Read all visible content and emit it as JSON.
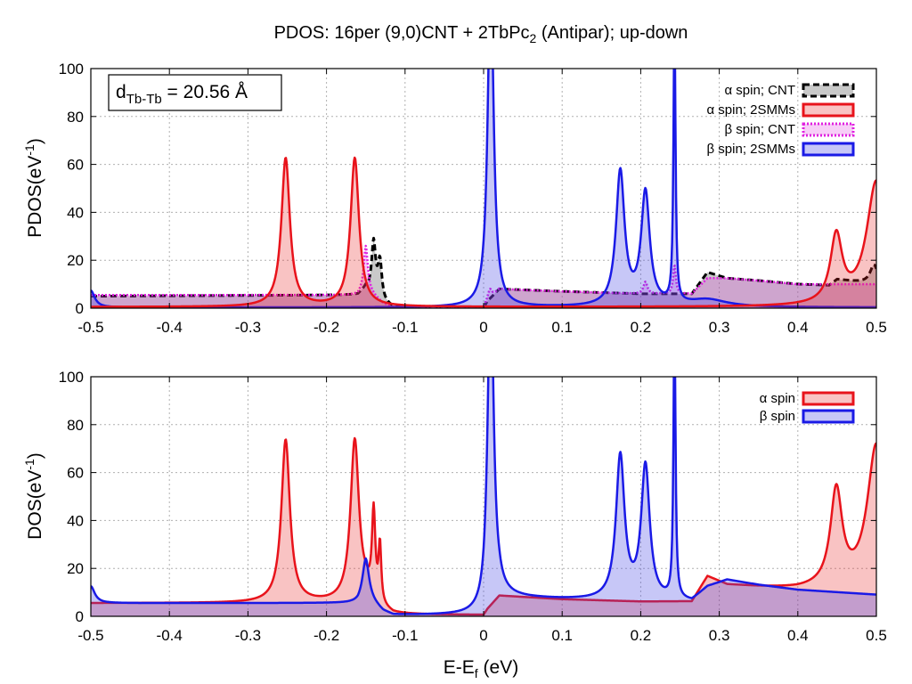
{
  "title": {
    "prefix": "PDOS: 16per (9,0)CNT + 2TbPc",
    "sub": "2",
    "suffix": " (Antipar); up-down"
  },
  "annotation": {
    "d_main": "d",
    "d_sub": "Tb-Tb",
    "d_value": " = 20.56 Å"
  },
  "colors": {
    "alpha": "#e8131b",
    "alpha_fill": "rgba(232,40,40,0.28)",
    "beta": "#1a1ae6",
    "beta_fill": "rgba(70,70,230,0.30)",
    "cnt_alpha": "#000000",
    "cnt_alpha_fill": "rgba(120,120,120,0.40)",
    "cnt_beta": "#e020e0",
    "cnt_beta_fill": "rgba(225,60,225,0.25)"
  },
  "chart_data": [
    {
      "type": "area",
      "panel": "top",
      "ylabel_main": "PDOS(eV",
      "ylabel_sup": "-1",
      "ylabel_end": ")",
      "xlim": [
        -0.5,
        0.5
      ],
      "ylim": [
        0,
        100
      ],
      "xticks": [
        -0.5,
        -0.4,
        -0.3,
        -0.2,
        -0.1,
        0,
        0.1,
        0.2,
        0.3,
        0.4,
        0.5
      ],
      "yticks": [
        0,
        20,
        40,
        60,
        80,
        100
      ],
      "grid": true,
      "legend_position": "top-right",
      "series": [
        {
          "name": "α spin; CNT",
          "style": "dashed",
          "baseline": [
            [
              -0.5,
              5
            ],
            [
              -0.16,
              5.5
            ],
            [
              -0.15,
              8
            ],
            [
              -0.128,
              2
            ],
            [
              -0.115,
              0.3
            ],
            [
              0.0,
              0.3
            ],
            [
              0.005,
              3
            ],
            [
              0.02,
              8
            ],
            [
              0.1,
              7
            ],
            [
              0.2,
              6
            ],
            [
              0.265,
              6
            ],
            [
              0.285,
              15
            ],
            [
              0.31,
              12.5
            ],
            [
              0.35,
              11.5
            ],
            [
              0.4,
              10
            ],
            [
              0.44,
              9.5
            ],
            [
              0.45,
              12
            ],
            [
              0.5,
              10
            ]
          ],
          "peaks": [
            [
              -0.14,
              22,
              0.003
            ],
            [
              -0.132,
              16,
              0.003
            ],
            [
              0.497,
              8,
              0.006
            ]
          ]
        },
        {
          "name": "α spin; 2SMMs",
          "style": "solid",
          "baseline": [
            [
              -0.5,
              0.5
            ],
            [
              0.5,
              0.5
            ]
          ],
          "peaks": [
            [
              -0.252,
              62,
              0.0065
            ],
            [
              -0.164,
              62,
              0.0065
            ],
            [
              0.449,
              28,
              0.009
            ],
            [
              0.5,
              52,
              0.015
            ]
          ]
        },
        {
          "name": "β spin; CNT",
          "style": "dotted",
          "baseline": [
            [
              -0.5,
              5.5
            ],
            [
              -0.16,
              5.5
            ],
            [
              -0.15,
              8
            ],
            [
              -0.128,
              2
            ],
            [
              -0.115,
              0.3
            ],
            [
              0.0,
              0.3
            ],
            [
              0.005,
              3
            ],
            [
              0.02,
              8
            ],
            [
              0.1,
              7
            ],
            [
              0.2,
              6
            ],
            [
              0.265,
              6
            ],
            [
              0.285,
              12.5
            ],
            [
              0.31,
              12.5
            ],
            [
              0.35,
              11.5
            ],
            [
              0.4,
              10
            ],
            [
              0.5,
              10
            ]
          ],
          "peaks": [
            [
              -0.15,
              18,
              0.003
            ],
            [
              0.008,
              4,
              0.003
            ],
            [
              0.206,
              5,
              0.003
            ],
            [
              0.243,
              12,
              0.002
            ]
          ]
        },
        {
          "name": "β spin; 2SMMs",
          "style": "solid",
          "baseline": [
            [
              -0.5,
              0.3
            ],
            [
              0.5,
              0.3
            ]
          ],
          "peaks": [
            [
              -0.5,
              7,
              0.006
            ],
            [
              0.009,
              140,
              0.0045
            ],
            [
              0.174,
              56,
              0.0065
            ],
            [
              0.206,
              47,
              0.0065
            ],
            [
              0.243,
              120,
              0.0015
            ],
            [
              0.285,
              3,
              0.03
            ]
          ]
        }
      ]
    },
    {
      "type": "area",
      "panel": "bottom",
      "xlabel_main": "E-E",
      "xlabel_sub": "f",
      "xlabel_end": " (eV)",
      "ylabel_main": "DOS(eV",
      "ylabel_sup": "-1",
      "ylabel_end": ")",
      "xlim": [
        -0.5,
        0.5
      ],
      "ylim": [
        0,
        100
      ],
      "xticks": [
        -0.5,
        -0.4,
        -0.3,
        -0.2,
        -0.1,
        0,
        0.1,
        0.2,
        0.3,
        0.4,
        0.5
      ],
      "yticks": [
        0,
        20,
        40,
        60,
        80,
        100
      ],
      "grid": true,
      "legend_position": "top-right",
      "series": [
        {
          "name": "α spin",
          "style": "solid",
          "baseline": [
            [
              -0.5,
              5.5
            ],
            [
              -0.16,
              5.5
            ],
            [
              -0.15,
              8
            ],
            [
              -0.128,
              2
            ],
            [
              -0.115,
              0.5
            ],
            [
              0.0,
              0.5
            ],
            [
              0.005,
              3
            ],
            [
              0.02,
              8.5
            ],
            [
              0.1,
              7
            ],
            [
              0.2,
              6
            ],
            [
              0.265,
              6
            ],
            [
              0.285,
              16.5
            ],
            [
              0.31,
              13
            ],
            [
              0.35,
              12
            ],
            [
              0.4,
              11
            ],
            [
              0.5,
              11
            ]
          ],
          "peaks": [
            [
              -0.252,
              68,
              0.0065
            ],
            [
              -0.164,
              68,
              0.0065
            ],
            [
              -0.14,
              36,
              0.0025
            ],
            [
              -0.132,
              24,
              0.002
            ],
            [
              0.449,
              40,
              0.009
            ],
            [
              0.5,
              60,
              0.014
            ]
          ]
        },
        {
          "name": "β spin",
          "style": "solid",
          "baseline": [
            [
              -0.5,
              5.5
            ],
            [
              -0.16,
              5.5
            ],
            [
              -0.15,
              8
            ],
            [
              -0.128,
              2
            ],
            [
              -0.115,
              0.5
            ],
            [
              0.0,
              0.5
            ],
            [
              0.005,
              3
            ],
            [
              0.02,
              8
            ],
            [
              0.1,
              7
            ],
            [
              0.2,
              6
            ],
            [
              0.265,
              6
            ],
            [
              0.285,
              12
            ],
            [
              0.31,
              15
            ],
            [
              0.35,
              13
            ],
            [
              0.4,
              11
            ],
            [
              0.5,
              9
            ]
          ],
          "peaks": [
            [
              -0.5,
              7,
              0.006
            ],
            [
              -0.15,
              16,
              0.005
            ],
            [
              0.009,
              140,
              0.0045
            ],
            [
              0.174,
              60,
              0.0065
            ],
            [
              0.206,
              56,
              0.0065
            ],
            [
              0.243,
              120,
              0.0015
            ]
          ]
        }
      ]
    }
  ]
}
